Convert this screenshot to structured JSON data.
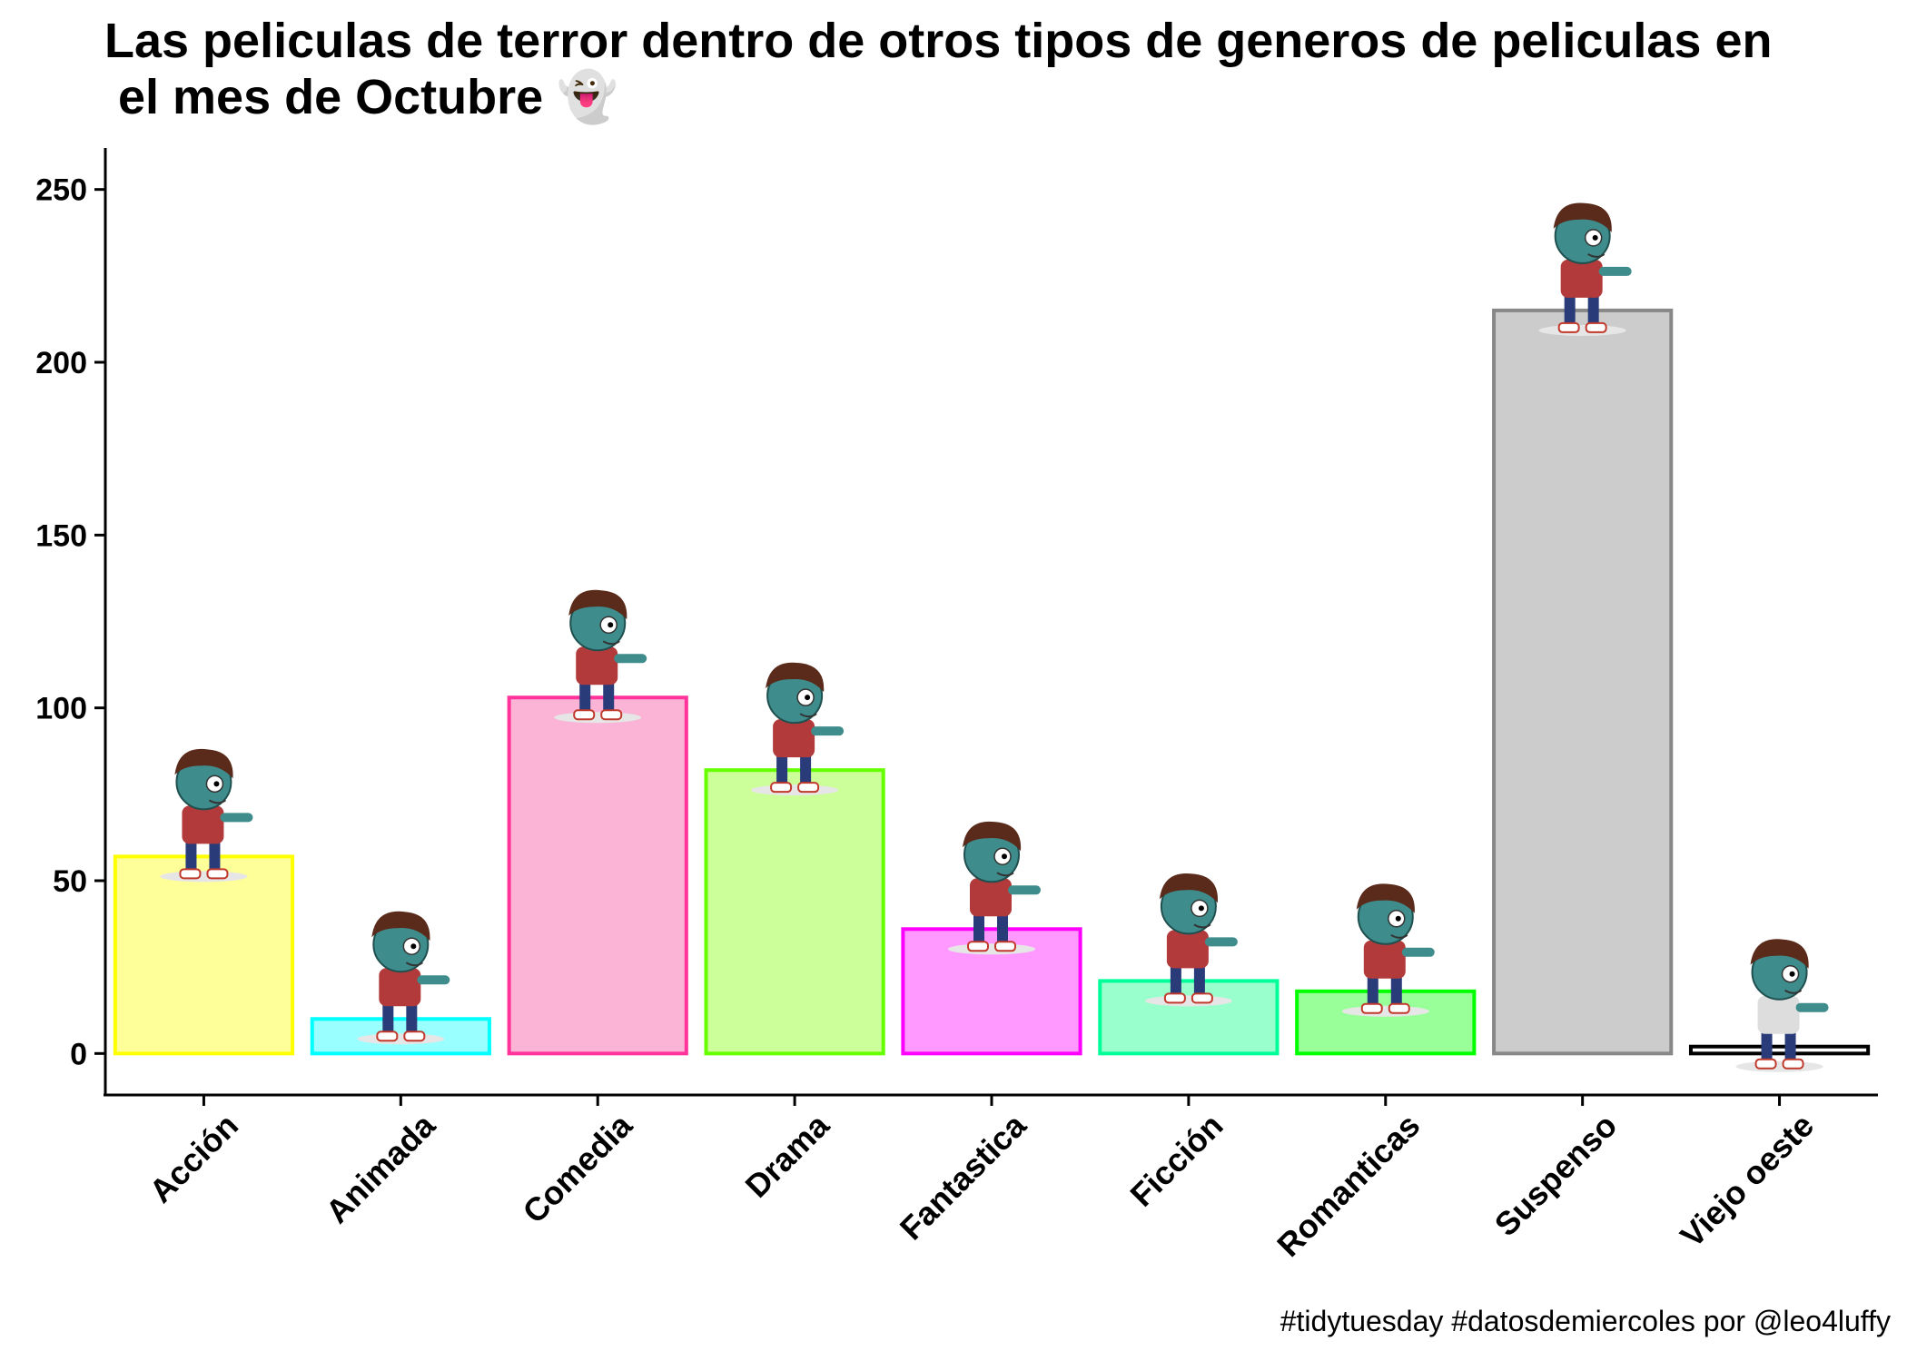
{
  "title_line1": "Las peliculas de terror dentro de otros tipos de generos de peliculas en",
  "title_line2": " el mes de Octubre",
  "title_emoji": "👻",
  "caption": "#tidytuesday #datosdemiercoles por @leo4luffy",
  "chart_data": {
    "type": "bar",
    "categories": [
      "Acción",
      "Animada",
      "Comedia",
      "Drama",
      "Fantastica",
      "Ficción",
      "Romanticas",
      "Suspenso",
      "Viejo oeste"
    ],
    "values": [
      57,
      10,
      103,
      82,
      36,
      21,
      18,
      215,
      2
    ],
    "ylim": [
      -12,
      262
    ],
    "yticks": [
      0,
      50,
      100,
      150,
      200,
      250
    ],
    "xlabel": "",
    "ylabel": "",
    "legend": "none",
    "grid": false,
    "fill_colors": [
      "#ffff99",
      "#99ffff",
      "#fbb4d6",
      "#ccff99",
      "#ff99ff",
      "#99ffcc",
      "#99ff99",
      "#cccccc",
      "#ffffff"
    ],
    "border_colors": [
      "#ffff00",
      "#00ffff",
      "#ff3399",
      "#66ff00",
      "#ff00ff",
      "#00ff99",
      "#00ff00",
      "#888888",
      "#000000"
    ],
    "icon": "zombie-icon"
  }
}
